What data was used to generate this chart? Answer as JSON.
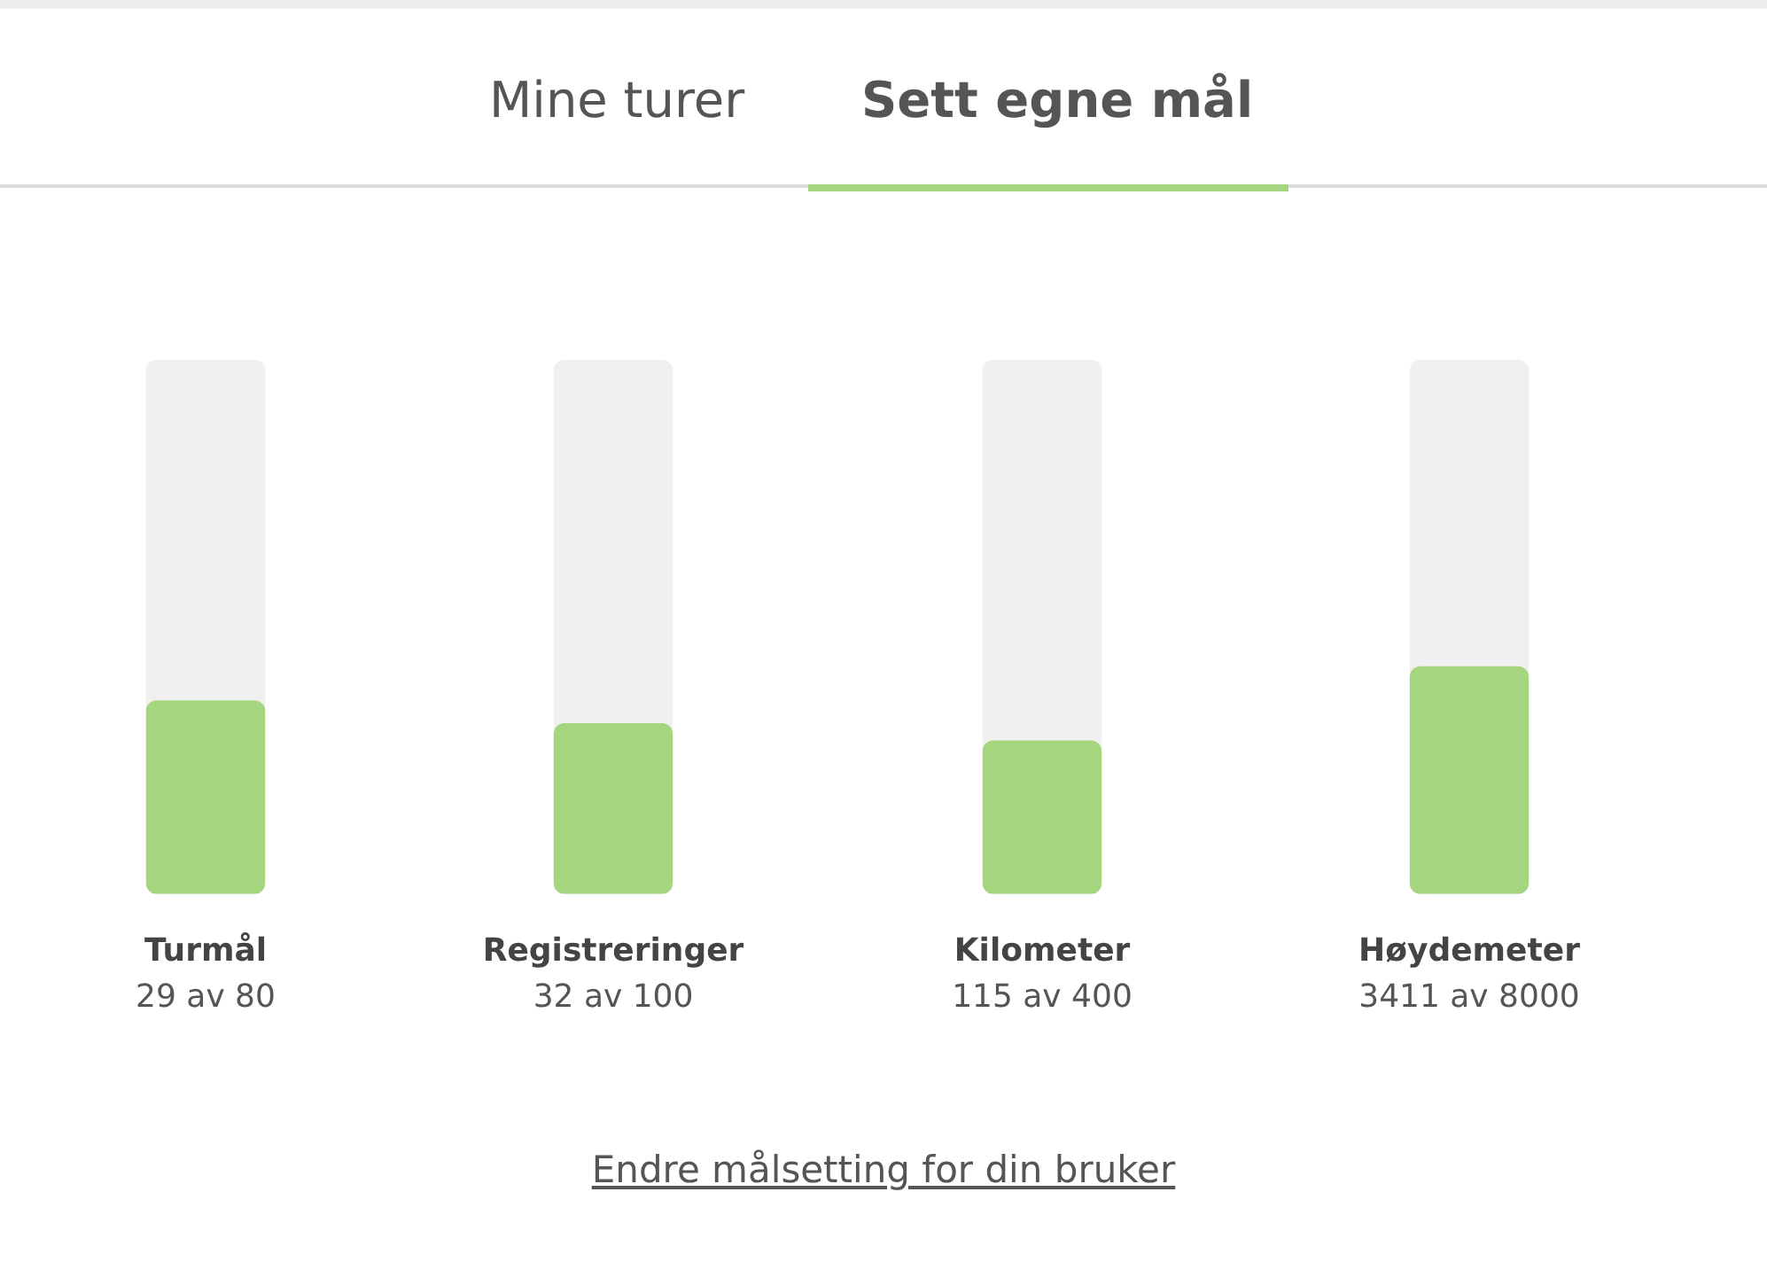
{
  "chart_data": [
    {
      "type": "bar",
      "categories": [
        "Turmål"
      ],
      "values": [
        29
      ],
      "value_labels": [
        "29 av 80"
      ],
      "color": "#a5d57e",
      "ylim": [
        0,
        80
      ],
      "tick_labels": "x",
      "grid": false,
      "legend": false,
      "annotations": [
        "Mine turer",
        "Sett egne mål",
        "Endre målsetting for din bruker"
      ]
    },
    {
      "type": "bar",
      "categories": [
        "Registreringer"
      ],
      "values": [
        32
      ],
      "value_labels": [
        "32 av 100"
      ],
      "color": "#a5d57e",
      "ylim": [
        0,
        100
      ],
      "tick_labels": "x",
      "grid": false,
      "legend": false
    },
    {
      "type": "bar",
      "categories": [
        "Kilometer"
      ],
      "values": [
        115
      ],
      "value_labels": [
        "115 av 400"
      ],
      "color": "#a5d57e",
      "ylim": [
        0,
        400
      ],
      "tick_labels": "x",
      "grid": false,
      "legend": false
    },
    {
      "type": "bar",
      "categories": [
        "Høydemeter"
      ],
      "values": [
        3411
      ],
      "value_labels": [
        "3411 av 8000"
      ],
      "color": "#a5d57e",
      "ylim": [
        0,
        8000
      ],
      "tick_labels": "x",
      "grid": false,
      "legend": false
    }
  ]
}
